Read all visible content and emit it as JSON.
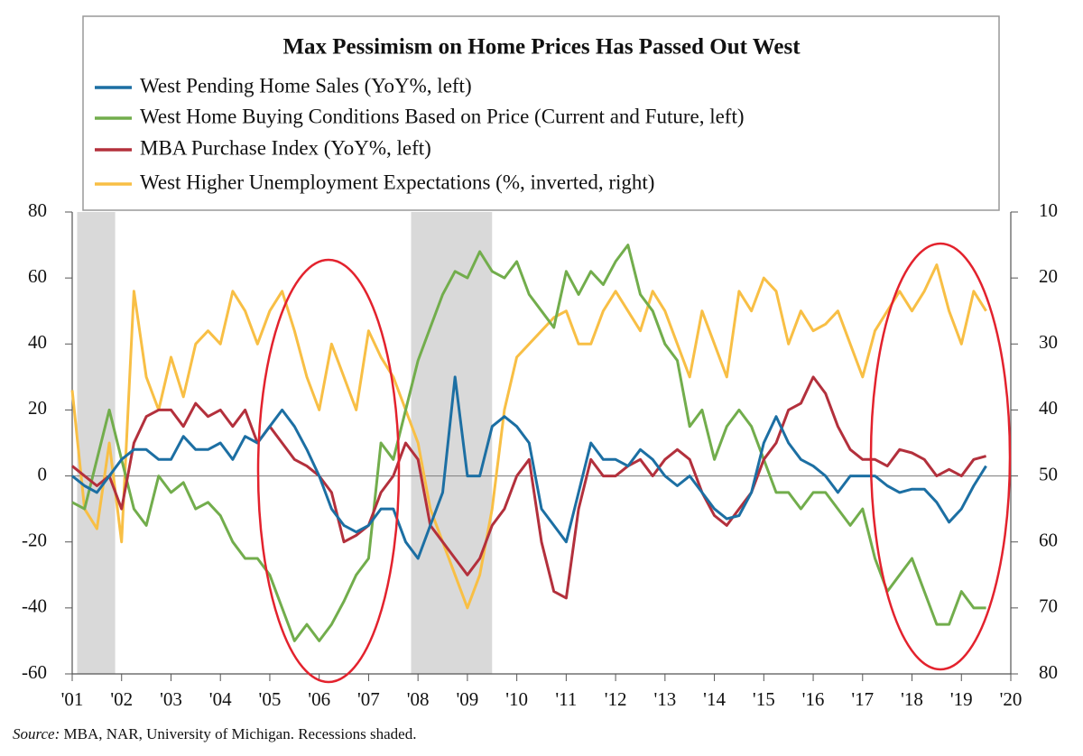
{
  "chart_data": {
    "type": "line",
    "title": "Max Pessimism on Home Prices Has Passed Out West",
    "source_label": "Source:",
    "source": "MBA, NAR, University of Michigan. Recessions shaded.",
    "xlim": [
      2001,
      2020
    ],
    "xticks": [
      {
        "value": 2001,
        "label": "'01"
      },
      {
        "value": 2002,
        "label": "'02"
      },
      {
        "value": 2003,
        "label": "'03"
      },
      {
        "value": 2004,
        "label": "'04"
      },
      {
        "value": 2005,
        "label": "'05"
      },
      {
        "value": 2006,
        "label": "'06"
      },
      {
        "value": 2007,
        "label": "'07"
      },
      {
        "value": 2008,
        "label": "'08"
      },
      {
        "value": 2009,
        "label": "'09"
      },
      {
        "value": 2010,
        "label": "'10"
      },
      {
        "value": 2011,
        "label": "'11"
      },
      {
        "value": 2012,
        "label": "'12"
      },
      {
        "value": 2013,
        "label": "'13"
      },
      {
        "value": 2014,
        "label": "'14"
      },
      {
        "value": 2015,
        "label": "'15"
      },
      {
        "value": 2016,
        "label": "'16"
      },
      {
        "value": 2017,
        "label": "'17"
      },
      {
        "value": 2018,
        "label": "'18"
      },
      {
        "value": 2019,
        "label": "'19"
      },
      {
        "value": 2020,
        "label": "'20"
      }
    ],
    "ylim": [
      -60,
      80
    ],
    "yticks": [
      80,
      60,
      40,
      20,
      0,
      -20,
      -40,
      -60
    ],
    "y2lim": [
      10,
      80
    ],
    "y2_inverted": true,
    "y2ticks": [
      10,
      20,
      30,
      40,
      50,
      60,
      70,
      80
    ],
    "zero_line": true,
    "shaded_ranges": [
      [
        2001.1,
        2001.87
      ],
      [
        2007.86,
        2009.5
      ]
    ],
    "x": [
      2001,
      2001.25,
      2001.5,
      2001.75,
      2002,
      2002.25,
      2002.5,
      2002.75,
      2003,
      2003.25,
      2003.5,
      2003.75,
      2004,
      2004.25,
      2004.5,
      2004.75,
      2005,
      2005.25,
      2005.5,
      2005.75,
      2006,
      2006.25,
      2006.5,
      2006.75,
      2007,
      2007.25,
      2007.5,
      2007.75,
      2008,
      2008.25,
      2008.5,
      2008.75,
      2009,
      2009.25,
      2009.5,
      2009.75,
      2010,
      2010.25,
      2010.5,
      2010.75,
      2011,
      2011.25,
      2011.5,
      2011.75,
      2012,
      2012.25,
      2012.5,
      2012.75,
      2013,
      2013.25,
      2013.5,
      2013.75,
      2014,
      2014.25,
      2014.5,
      2014.75,
      2015,
      2015.25,
      2015.5,
      2015.75,
      2016,
      2016.25,
      2016.5,
      2016.75,
      2017,
      2017.25,
      2017.5,
      2017.75,
      2018,
      2018.25,
      2018.5,
      2018.75,
      2019,
      2019.25,
      2019.5
    ],
    "series": [
      {
        "name": "West Higher Unemployment Expectations (%, inverted, right)",
        "color": "#f8bf45",
        "axis": "y2",
        "values": [
          37,
          55,
          58,
          45,
          60,
          22,
          35,
          40,
          32,
          38,
          30,
          28,
          30,
          22,
          25,
          30,
          25,
          22,
          28,
          35,
          40,
          30,
          35,
          40,
          28,
          32,
          35,
          40,
          45,
          55,
          60,
          65,
          70,
          65,
          55,
          40,
          32,
          30,
          28,
          26,
          25,
          30,
          30,
          25,
          22,
          25,
          28,
          22,
          25,
          30,
          35,
          25,
          30,
          35,
          22,
          25,
          20,
          22,
          30,
          25,
          28,
          27,
          25,
          30,
          35,
          28,
          25,
          22,
          25,
          22,
          18,
          25,
          30,
          22,
          25
        ]
      },
      {
        "name": "West Home Buying Conditions Based on Price (Current and Future, left)",
        "color": "#72ad4c",
        "values": [
          -8,
          -10,
          5,
          20,
          5,
          -10,
          -15,
          0,
          -5,
          -2,
          -10,
          -8,
          -12,
          -20,
          -25,
          -25,
          -30,
          -40,
          -50,
          -45,
          -50,
          -45,
          -38,
          -30,
          -25,
          10,
          5,
          20,
          35,
          45,
          55,
          62,
          60,
          68,
          62,
          60,
          65,
          55,
          50,
          45,
          62,
          55,
          62,
          58,
          65,
          70,
          55,
          50,
          40,
          35,
          15,
          20,
          5,
          15,
          20,
          15,
          5,
          -5,
          -5,
          -10,
          -5,
          -5,
          -10,
          -15,
          -10,
          -25,
          -35,
          -30,
          -25,
          -35,
          -45,
          -45,
          -35,
          -40,
          -40
        ]
      },
      {
        "name": "MBA Purchase Index (YoY%, left)",
        "color": "#b3303c",
        "values": [
          3,
          0,
          -3,
          0,
          -10,
          10,
          18,
          20,
          20,
          15,
          22,
          18,
          20,
          15,
          20,
          10,
          15,
          10,
          5,
          3,
          0,
          -5,
          -20,
          -18,
          -15,
          -5,
          0,
          10,
          5,
          -15,
          -20,
          -25,
          -30,
          -25,
          -15,
          -10,
          0,
          5,
          -20,
          -35,
          -37,
          -10,
          5,
          0,
          0,
          3,
          5,
          0,
          5,
          8,
          5,
          -5,
          -12,
          -15,
          -10,
          -5,
          5,
          10,
          20,
          22,
          30,
          25,
          15,
          8,
          5,
          5,
          3,
          8,
          7,
          5,
          0,
          2,
          0,
          5,
          6
        ]
      },
      {
        "name": "West Pending Home Sales (YoY%, left)",
        "color": "#1c6fa3",
        "values": [
          0,
          -3,
          -5,
          0,
          5,
          8,
          8,
          5,
          5,
          12,
          8,
          8,
          10,
          5,
          12,
          10,
          15,
          20,
          15,
          8,
          0,
          -10,
          -15,
          -17,
          -15,
          -10,
          -10,
          -20,
          -25,
          -15,
          -5,
          30,
          0,
          0,
          15,
          18,
          15,
          10,
          -10,
          -15,
          -20,
          -5,
          10,
          5,
          5,
          3,
          8,
          5,
          0,
          -3,
          0,
          -5,
          -10,
          -13,
          -12,
          -5,
          10,
          18,
          10,
          5,
          3,
          0,
          -5,
          0,
          0,
          0,
          -3,
          -5,
          -4,
          -4,
          -8,
          -14,
          -10,
          -3,
          3
        ]
      }
    ],
    "legend_order": [
      3,
      1,
      2,
      0
    ]
  }
}
